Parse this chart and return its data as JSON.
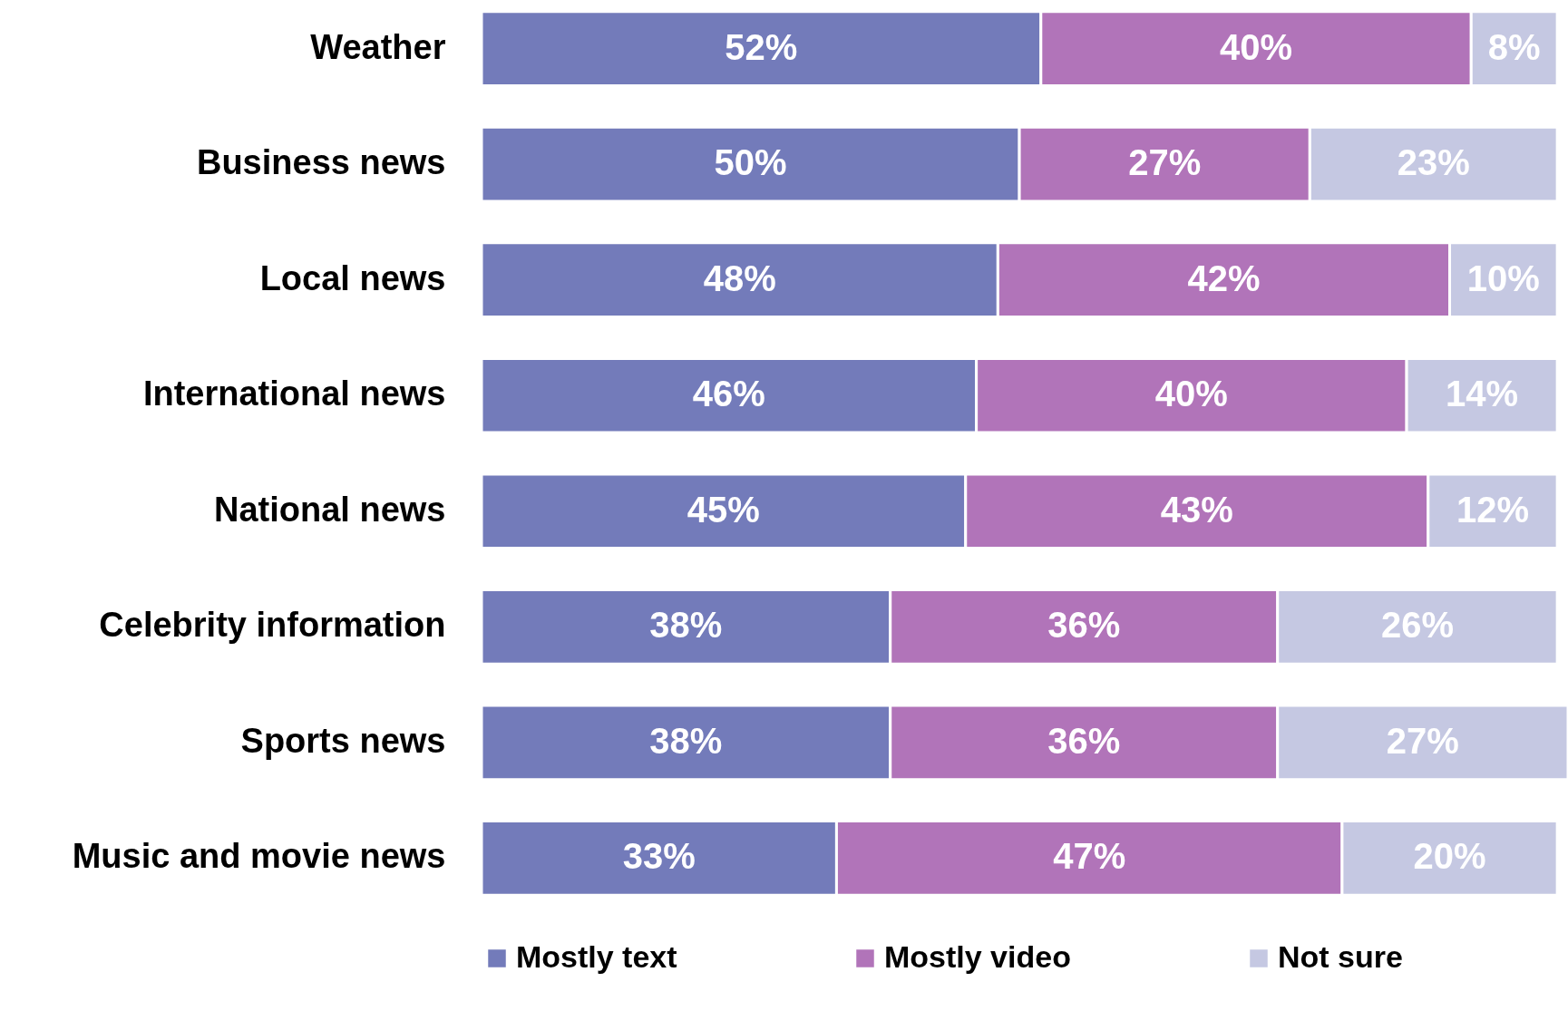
{
  "chart_data": {
    "type": "bar",
    "orientation": "horizontal",
    "stacked": true,
    "legend": "bottom",
    "categories": [
      "Weather",
      "Business news",
      "Local news",
      "International news",
      "National news",
      "Celebrity information",
      "Sports news",
      "Music and movie news"
    ],
    "series": [
      {
        "name": "Mostly text",
        "color": "#737bba",
        "values": [
          52,
          50,
          48,
          46,
          45,
          38,
          38,
          33
        ],
        "value_labels": [
          "52%",
          "50%",
          "48%",
          "46%",
          "45%",
          "38%",
          "38%",
          "33%"
        ]
      },
      {
        "name": "Mostly video",
        "color": "#b174b9",
        "values": [
          40,
          27,
          42,
          40,
          43,
          36,
          36,
          47
        ],
        "value_labels": [
          "40%",
          "27%",
          "42%",
          "40%",
          "43%",
          "36%",
          "36%",
          "47%"
        ]
      },
      {
        "name": "Not sure",
        "color": "#c5c8e2",
        "values": [
          8,
          23,
          10,
          14,
          12,
          26,
          27,
          20
        ],
        "value_labels": [
          "8%",
          "23%",
          "10%",
          "14%",
          "12%",
          "26%",
          "27%",
          "20%"
        ]
      }
    ]
  }
}
